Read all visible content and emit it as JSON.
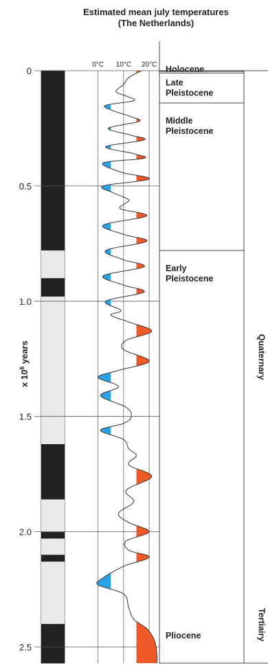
{
  "title_line1": "Estimated mean july temperatures",
  "title_line2": "(The Netherlands)",
  "colors": {
    "cold": "#2aa3e6",
    "warm": "#ef5a2a",
    "normal": "#e9e9e9",
    "reversed": "#222222",
    "line": "#444444"
  },
  "chart_data": {
    "type": "line",
    "ylabel": "x 10^6 years",
    "ylabel_base": "x 10",
    "ylabel_exp": "6",
    "ylabel_tail": " years",
    "yticks": [
      "0",
      "0.5",
      "1.0",
      "1.5",
      "2.0",
      "2.5"
    ],
    "ytick_values": [
      0,
      0.5,
      1.0,
      1.5,
      2.0,
      2.5
    ],
    "ylim": [
      0,
      2.57
    ],
    "temp_ticks": [
      "0°C",
      "10°C",
      "20°C"
    ],
    "temp_values": [
      0,
      10,
      20
    ],
    "xlim": [
      -5,
      24
    ],
    "cold_threshold": 5,
    "warm_threshold": 15,
    "baseline": 10,
    "magnetic_polarity": [
      {
        "from": 0,
        "to": 0.78,
        "state": "reversed"
      },
      {
        "from": 0.78,
        "to": 0.9,
        "state": "normal"
      },
      {
        "from": 0.9,
        "to": 0.98,
        "state": "reversed"
      },
      {
        "from": 0.98,
        "to": 1.62,
        "state": "normal"
      },
      {
        "from": 1.62,
        "to": 1.86,
        "state": "reversed"
      },
      {
        "from": 1.86,
        "to": 2.0,
        "state": "normal"
      },
      {
        "from": 2.0,
        "to": 2.03,
        "state": "reversed"
      },
      {
        "from": 2.03,
        "to": 2.1,
        "state": "normal"
      },
      {
        "from": 2.1,
        "to": 2.13,
        "state": "reversed"
      },
      {
        "from": 2.13,
        "to": 2.4,
        "state": "normal"
      },
      {
        "from": 2.4,
        "to": 2.57,
        "state": "reversed"
      }
    ],
    "temperature_curve": [
      [
        0.0,
        17
      ],
      [
        0.03,
        12
      ],
      [
        0.06,
        10
      ],
      [
        0.09,
        7
      ],
      [
        0.11,
        11
      ],
      [
        0.13,
        14
      ],
      [
        0.15,
        3
      ],
      [
        0.17,
        5
      ],
      [
        0.2,
        13
      ],
      [
        0.22,
        16
      ],
      [
        0.25,
        4
      ],
      [
        0.28,
        13
      ],
      [
        0.3,
        18
      ],
      [
        0.33,
        3
      ],
      [
        0.36,
        14
      ],
      [
        0.38,
        18
      ],
      [
        0.4,
        2
      ],
      [
        0.44,
        9
      ],
      [
        0.47,
        20
      ],
      [
        0.5,
        2
      ],
      [
        0.53,
        6
      ],
      [
        0.56,
        12
      ],
      [
        0.58,
        10
      ],
      [
        0.6,
        9
      ],
      [
        0.63,
        19
      ],
      [
        0.67,
        2
      ],
      [
        0.71,
        10
      ],
      [
        0.74,
        19
      ],
      [
        0.78,
        3
      ],
      [
        0.82,
        10
      ],
      [
        0.85,
        18
      ],
      [
        0.89,
        2
      ],
      [
        0.93,
        10
      ],
      [
        0.96,
        18
      ],
      [
        1.0,
        3
      ],
      [
        1.04,
        9
      ],
      [
        1.06,
        5
      ],
      [
        1.09,
        12
      ],
      [
        1.13,
        21
      ],
      [
        1.17,
        11
      ],
      [
        1.21,
        10
      ],
      [
        1.26,
        20
      ],
      [
        1.3,
        8
      ],
      [
        1.33,
        0
      ],
      [
        1.37,
        8
      ],
      [
        1.41,
        1
      ],
      [
        1.46,
        11
      ],
      [
        1.5,
        13
      ],
      [
        1.53,
        10
      ],
      [
        1.56,
        1
      ],
      [
        1.6,
        10
      ],
      [
        1.64,
        12
      ],
      [
        1.67,
        15
      ],
      [
        1.71,
        12
      ],
      [
        1.76,
        21
      ],
      [
        1.82,
        11
      ],
      [
        1.87,
        14
      ],
      [
        1.92,
        8
      ],
      [
        1.96,
        12
      ],
      [
        2.0,
        20
      ],
      [
        2.04,
        11
      ],
      [
        2.08,
        12
      ],
      [
        2.11,
        20
      ],
      [
        2.15,
        10
      ],
      [
        2.2,
        2
      ],
      [
        2.23,
        0
      ],
      [
        2.27,
        10
      ],
      [
        2.33,
        12
      ],
      [
        2.38,
        14
      ],
      [
        2.42,
        19
      ],
      [
        2.47,
        22
      ],
      [
        2.53,
        23
      ],
      [
        2.57,
        23
      ]
    ],
    "epochs": [
      {
        "name_lines": [
          "Holocene"
        ],
        "from": 0,
        "to": 0.01
      },
      {
        "name_lines": [
          "Late",
          "Pleistocene"
        ],
        "from": 0.01,
        "to": 0.14
      },
      {
        "name_lines": [
          "Middle",
          "Pleistocene"
        ],
        "from": 0.14,
        "to": 0.78
      },
      {
        "name_lines": [
          "Early",
          "Pleistocene"
        ],
        "from": 0.78,
        "to": 2.59
      },
      {
        "name_lines": [
          "Pliocene"
        ],
        "from": 2.59,
        "to": 2.57
      }
    ],
    "periods": [
      {
        "name": "Quaternary",
        "from": 0,
        "to": 2.59
      },
      {
        "name": "Tertiairy",
        "from": 2.59,
        "to": 2.57
      }
    ]
  }
}
